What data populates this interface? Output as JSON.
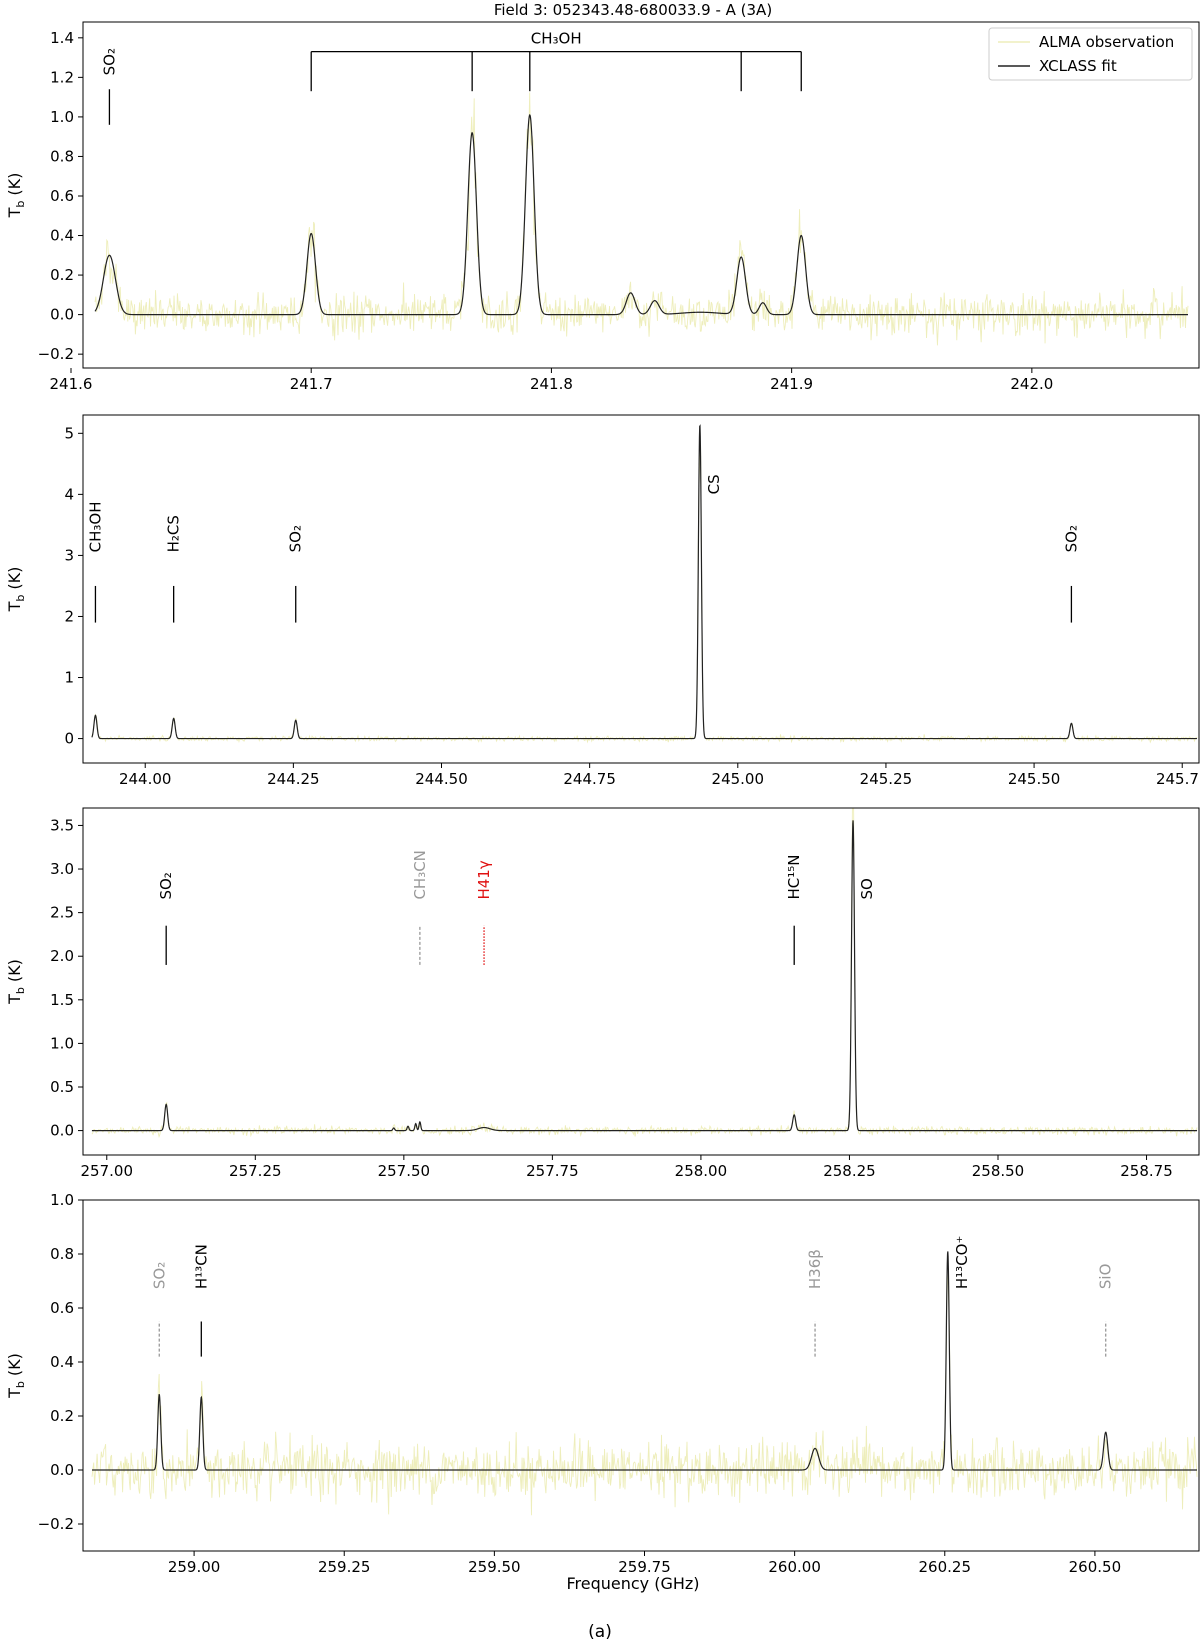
{
  "figure": {
    "title": "Field 3: 052343.48-680033.9 - A (3A)",
    "caption": "(a)",
    "xlabel": "Frequency (GHz)",
    "legend": [
      {
        "label": "ALMA observation",
        "color": "#eeeebb"
      },
      {
        "label": "XCLASS fit",
        "color": "#222222"
      }
    ]
  },
  "chart_data": [
    {
      "type": "line",
      "ylabel": "T_b (K)",
      "xlim": [
        241.605,
        242.07
      ],
      "ylim": [
        -0.27,
        1.48
      ],
      "xticks": [
        241.6,
        241.7,
        241.8,
        241.9,
        242.0
      ],
      "xtick_labels": [
        "241.6",
        "241.7",
        "241.8",
        "241.9",
        "242.0"
      ],
      "yticks": [
        -0.2,
        0.0,
        0.2,
        0.4,
        0.6,
        0.8,
        1.0,
        1.2,
        1.4
      ],
      "ytick_labels": [
        "−0.2",
        "0.0",
        "0.2",
        "0.4",
        "0.6",
        "0.8",
        "1.0",
        "1.2",
        "1.4"
      ],
      "noise": 0.09,
      "obs_range": [
        241.61,
        242.065
      ],
      "legend": true,
      "peaks": [
        {
          "x": 241.616,
          "y": 0.3,
          "w": 0.0025
        },
        {
          "x": 241.7,
          "y": 0.41,
          "w": 0.0018
        },
        {
          "x": 241.767,
          "y": 0.92,
          "w": 0.0018
        },
        {
          "x": 241.791,
          "y": 1.01,
          "w": 0.0018
        },
        {
          "x": 241.833,
          "y": 0.11,
          "w": 0.0018
        },
        {
          "x": 241.843,
          "y": 0.07,
          "w": 0.0018
        },
        {
          "x": 241.862,
          "y": 0.012,
          "w": 0.008
        },
        {
          "x": 241.879,
          "y": 0.29,
          "w": 0.0018
        },
        {
          "x": 241.888,
          "y": 0.06,
          "w": 0.0015
        },
        {
          "x": 241.904,
          "y": 0.4,
          "w": 0.0018
        }
      ],
      "lines": [
        {
          "label": "SO₂",
          "x": 241.616,
          "y0": 0.96,
          "y1": 1.14,
          "color": "#000000",
          "dash": "",
          "label_y": 1.21
        }
      ],
      "brackets": [
        {
          "label": "CH₃OH",
          "y": 1.33,
          "drop": 1.13,
          "xs": [
            241.7,
            241.767,
            241.791,
            241.879,
            241.904
          ]
        }
      ]
    },
    {
      "type": "line",
      "ylabel": "T_b (K)",
      "xlim": [
        243.895,
        245.78
      ],
      "ylim": [
        -0.4,
        5.3
      ],
      "xticks": [
        244.0,
        244.25,
        244.5,
        244.75,
        245.0,
        245.25,
        245.5,
        245.75
      ],
      "xtick_labels": [
        "244.00",
        "244.25",
        "244.50",
        "244.75",
        "245.00",
        "245.25",
        "245.50",
        "245.75"
      ],
      "yticks": [
        0,
        1,
        2,
        3,
        4,
        5
      ],
      "ytick_labels": [
        "0",
        "1",
        "2",
        "3",
        "4",
        "5"
      ],
      "noise": 0.035,
      "obs_range": [
        243.91,
        245.775
      ],
      "legend": false,
      "peaks": [
        {
          "x": 243.916,
          "y": 0.38,
          "w": 0.0025
        },
        {
          "x": 244.048,
          "y": 0.33,
          "w": 0.0025
        },
        {
          "x": 244.254,
          "y": 0.3,
          "w": 0.0025
        },
        {
          "x": 244.936,
          "y": 5.14,
          "w": 0.0025
        },
        {
          "x": 245.563,
          "y": 0.25,
          "w": 0.0025
        }
      ],
      "lines": [
        {
          "label": "CH₃OH",
          "x": 243.916,
          "y0": 1.9,
          "y1": 2.5,
          "color": "#000000",
          "dash": "",
          "label_y": 3.05
        },
        {
          "label": "H₂CS",
          "x": 244.048,
          "y0": 1.9,
          "y1": 2.5,
          "color": "#000000",
          "dash": "",
          "label_y": 3.05
        },
        {
          "label": "SO₂",
          "x": 244.254,
          "y0": 1.9,
          "y1": 2.5,
          "color": "#000000",
          "dash": "",
          "label_y": 3.05
        },
        {
          "label": "CS",
          "x": 244.936,
          "y0": null,
          "y1": null,
          "color": "#000000",
          "dash": "",
          "label_y": 4.0,
          "offset": 14
        },
        {
          "label": "SO₂",
          "x": 245.563,
          "y0": 1.9,
          "y1": 2.5,
          "color": "#000000",
          "dash": "",
          "label_y": 3.05
        }
      ],
      "brackets": []
    },
    {
      "type": "line",
      "ylabel": "T_b (K)",
      "xlim": [
        256.96,
        258.84
      ],
      "ylim": [
        -0.28,
        3.7
      ],
      "xticks": [
        257.0,
        257.25,
        257.5,
        257.75,
        258.0,
        258.25,
        258.5,
        258.75
      ],
      "xtick_labels": [
        "257.00",
        "257.25",
        "257.50",
        "257.75",
        "258.00",
        "258.25",
        "258.50",
        "258.75"
      ],
      "yticks": [
        0.0,
        0.5,
        1.0,
        1.5,
        2.0,
        2.5,
        3.0,
        3.5
      ],
      "ytick_labels": [
        "0.0",
        "0.5",
        "1.0",
        "1.5",
        "2.0",
        "2.5",
        "3.0",
        "3.5"
      ],
      "noise": 0.04,
      "obs_range": [
        256.975,
        258.835
      ],
      "legend": false,
      "peaks": [
        {
          "x": 257.1,
          "y": 0.3,
          "w": 0.0025
        },
        {
          "x": 257.483,
          "y": 0.03,
          "w": 0.0015
        },
        {
          "x": 257.507,
          "y": 0.05,
          "w": 0.0015
        },
        {
          "x": 257.52,
          "y": 0.08,
          "w": 0.0015
        },
        {
          "x": 257.527,
          "y": 0.1,
          "w": 0.0015
        },
        {
          "x": 257.635,
          "y": 0.035,
          "w": 0.01
        },
        {
          "x": 258.157,
          "y": 0.18,
          "w": 0.0025
        },
        {
          "x": 258.256,
          "y": 3.56,
          "w": 0.0025
        }
      ],
      "lines": [
        {
          "label": "SO₂",
          "x": 257.1,
          "y0": 1.9,
          "y1": 2.35,
          "color": "#000000",
          "dash": "",
          "label_y": 2.65
        },
        {
          "label": "CH₃CN",
          "x": 257.527,
          "y0": 1.9,
          "y1": 2.35,
          "color": "#999999",
          "dash": "3,2",
          "label_y": 2.65
        },
        {
          "label": "H41γ",
          "x": 257.635,
          "y0": 1.9,
          "y1": 2.35,
          "color": "#e01010",
          "dash": "1.5,1.5",
          "label_y": 2.65
        },
        {
          "label": "HC¹⁵N",
          "x": 258.157,
          "y0": 1.9,
          "y1": 2.35,
          "color": "#000000",
          "dash": "",
          "label_y": 2.65
        },
        {
          "label": "SO",
          "x": 258.256,
          "y0": null,
          "y1": null,
          "color": "#000000",
          "dash": "",
          "label_y": 2.65,
          "offset": 14
        }
      ],
      "brackets": []
    },
    {
      "type": "line",
      "ylabel": "T_b (K)",
      "xlim": [
        258.815,
        260.675
      ],
      "ylim": [
        -0.3,
        1.0
      ],
      "xticks": [
        259.0,
        259.25,
        259.5,
        259.75,
        260.0,
        260.25,
        260.5
      ],
      "xtick_labels": [
        "259.00",
        "259.25",
        "259.50",
        "259.75",
        "260.00",
        "260.25",
        "260.50"
      ],
      "yticks": [
        -0.2,
        0.0,
        0.2,
        0.4,
        0.6,
        0.8,
        1.0
      ],
      "ytick_labels": [
        "−0.2",
        "0.0",
        "0.2",
        "0.4",
        "0.6",
        "0.8",
        "1.0"
      ],
      "noise": 0.09,
      "obs_range": [
        258.83,
        260.67
      ],
      "legend": false,
      "peaks": [
        {
          "x": 258.942,
          "y": 0.28,
          "w": 0.0025
        },
        {
          "x": 259.012,
          "y": 0.27,
          "w": 0.0025
        },
        {
          "x": 260.034,
          "y": 0.08,
          "w": 0.006
        },
        {
          "x": 260.255,
          "y": 0.81,
          "w": 0.0025
        },
        {
          "x": 260.518,
          "y": 0.14,
          "w": 0.0035
        }
      ],
      "lines": [
        {
          "label": "SO₂",
          "x": 258.942,
          "y0": 0.42,
          "y1": 0.55,
          "color": "#999999",
          "dash": "3,2",
          "label_y": 0.67
        },
        {
          "label": "H¹³CN",
          "x": 259.012,
          "y0": 0.42,
          "y1": 0.55,
          "color": "#000000",
          "dash": "",
          "label_y": 0.67
        },
        {
          "label": "H36β",
          "x": 260.034,
          "y0": 0.42,
          "y1": 0.55,
          "color": "#999999",
          "dash": "3,2",
          "label_y": 0.67
        },
        {
          "label": "H¹³CO⁺",
          "x": 260.255,
          "y0": null,
          "y1": null,
          "color": "#000000",
          "dash": "",
          "label_y": 0.67,
          "offset": 14
        },
        {
          "label": "SiO",
          "x": 260.518,
          "y0": 0.42,
          "y1": 0.55,
          "color": "#999999",
          "dash": "3,2",
          "label_y": 0.67
        }
      ],
      "brackets": []
    }
  ]
}
